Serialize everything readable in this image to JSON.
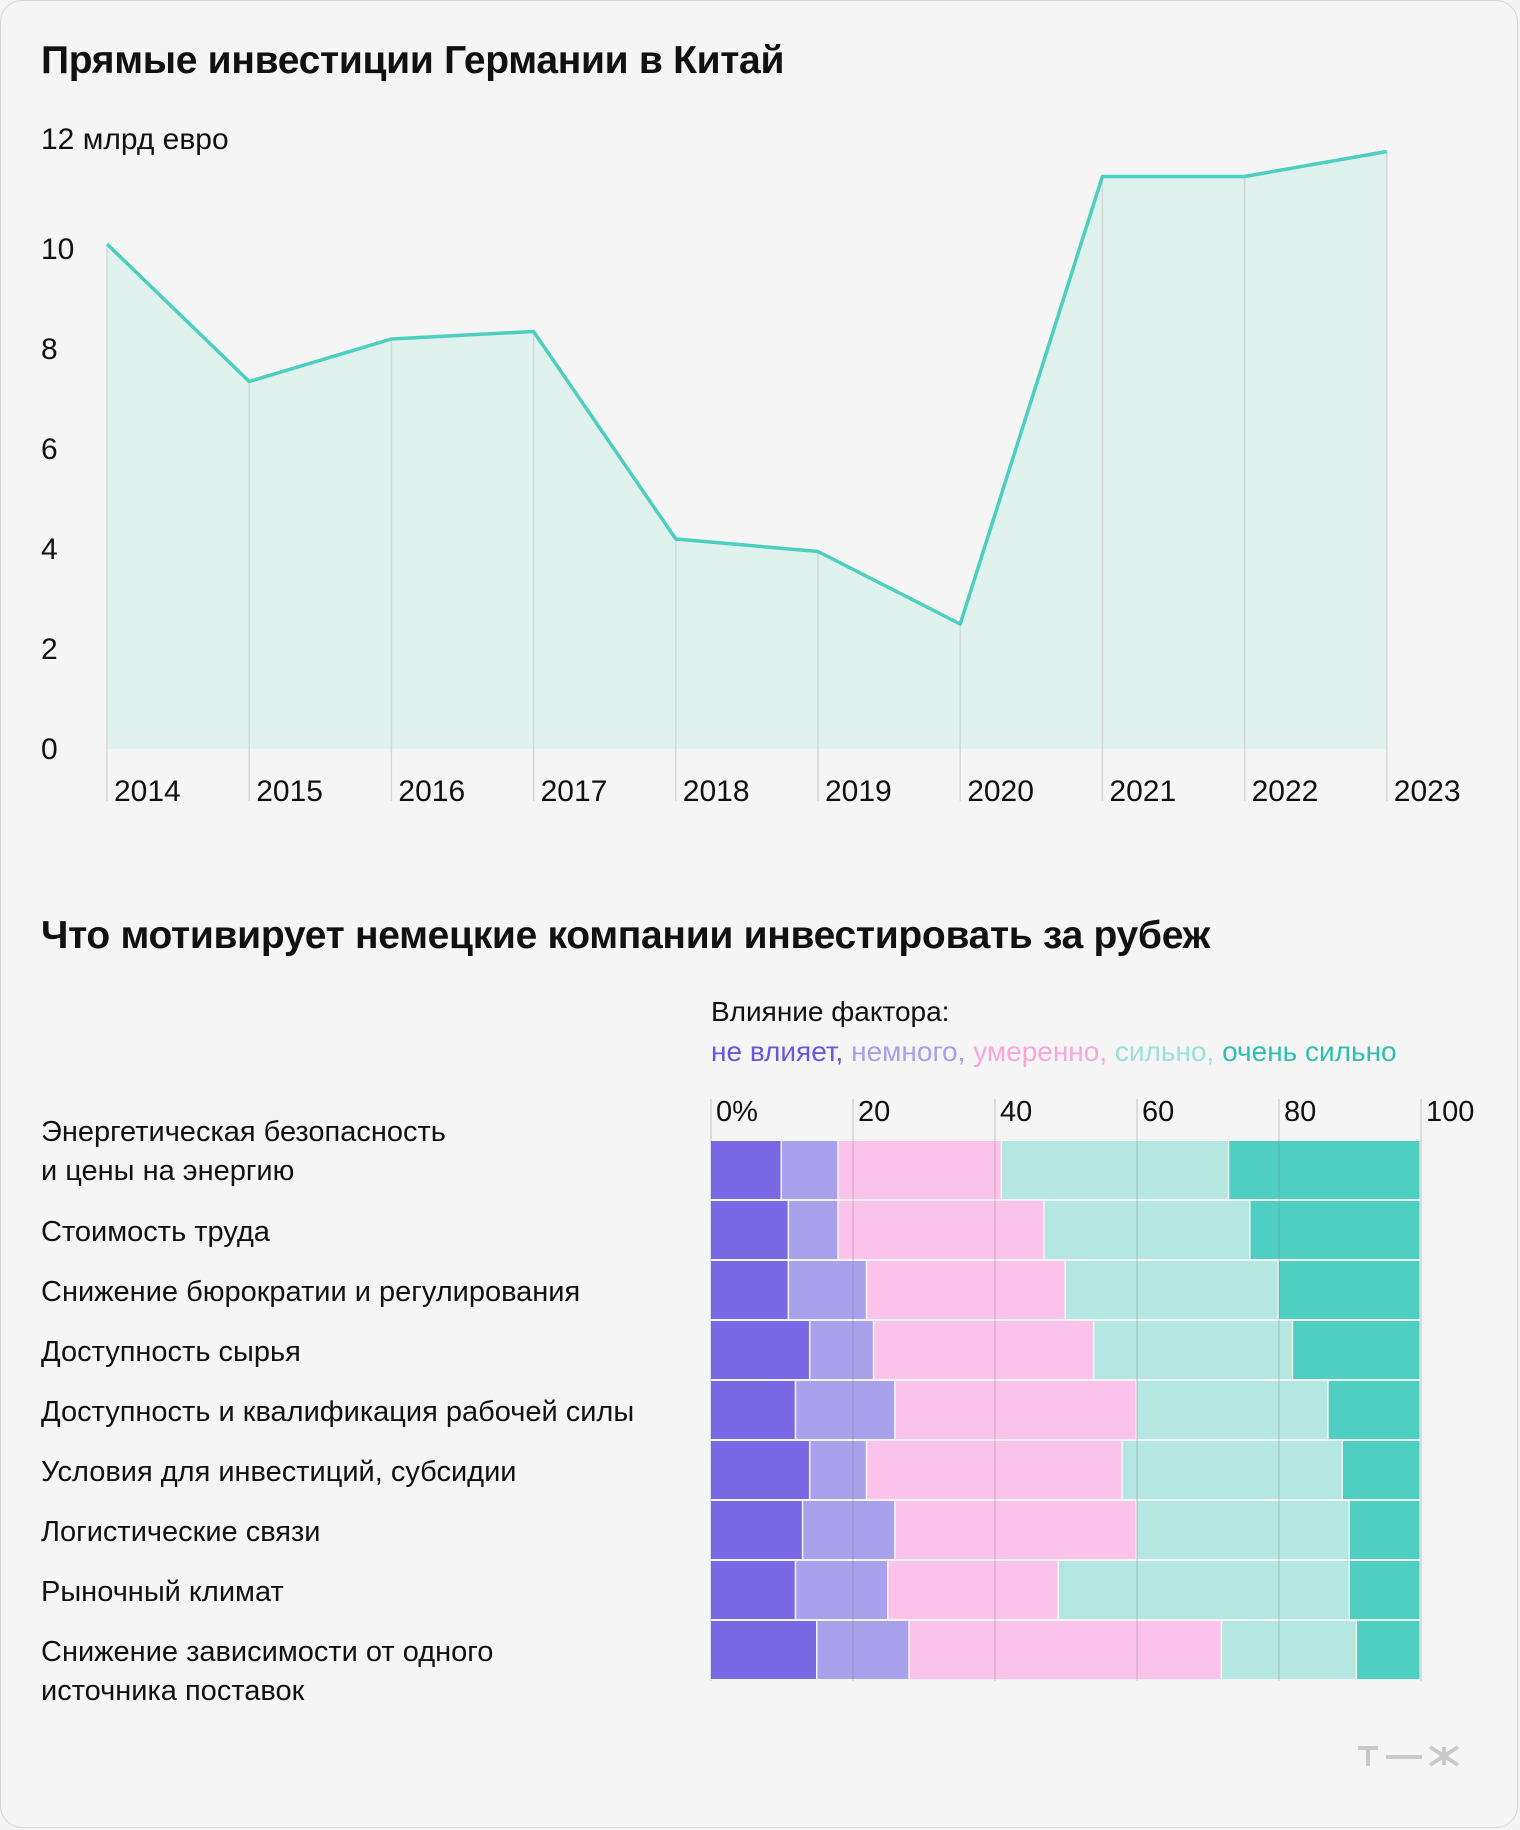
{
  "chart_data": [
    {
      "type": "area",
      "title": "Прямые инвестиции Германии в Китай",
      "ylabel": "12 млрд евро",
      "ylim": [
        0,
        12
      ],
      "yticks": [
        "0",
        "2",
        "4",
        "6",
        "8",
        "10"
      ],
      "categories": [
        "2014",
        "2015",
        "2016",
        "2017",
        "2018",
        "2019",
        "2020",
        "2021",
        "2022",
        "2023"
      ],
      "values": [
        10.1,
        7.35,
        8.2,
        8.35,
        4.2,
        3.95,
        2.5,
        11.45,
        11.45,
        11.95
      ],
      "color": "#4ccfc0",
      "fill": "#dff2ee"
    },
    {
      "type": "bar",
      "orientation": "horizontal",
      "stacked": true,
      "title": "Что мотивирует немецкие компании инвестировать за рубеж",
      "legend_title": "Влияние фактора:",
      "xlim": [
        0,
        100
      ],
      "xticks": [
        "0%",
        "20",
        "40",
        "60",
        "80",
        "100"
      ],
      "categories": [
        "Энергетическая безопасность\nи цены на энергию",
        "Стоимость труда",
        "Снижение бюрократии и регулирования",
        "Доступность сырья",
        "Доступность и квалификация рабочей силы",
        "Условия для инвестиций, субсидии",
        "Логистические связи",
        "Рыночный климат",
        "Снижение зависимости от одного\nисточника поставок"
      ],
      "series": [
        {
          "name": "не влияет,",
          "color": "#7a67e3",
          "values": [
            10,
            11,
            11,
            14,
            12,
            14,
            13,
            12,
            15
          ]
        },
        {
          "name": "немного,",
          "color": "#aaa1ec",
          "values": [
            8,
            7,
            11,
            9,
            14,
            8,
            13,
            13,
            13
          ]
        },
        {
          "name": "умеренно,",
          "color": "#fbc2eb",
          "values": [
            23,
            29,
            28,
            31,
            34,
            36,
            34,
            24,
            44
          ]
        },
        {
          "name": "сильно,",
          "color": "#b4e7e2",
          "values": [
            32,
            29,
            30,
            28,
            27,
            31,
            30,
            41,
            19
          ]
        },
        {
          "name": "очень сильно",
          "color": "#4ecfc2",
          "values": [
            27,
            24,
            20,
            18,
            13,
            11,
            10,
            10,
            9
          ]
        }
      ]
    }
  ]
}
